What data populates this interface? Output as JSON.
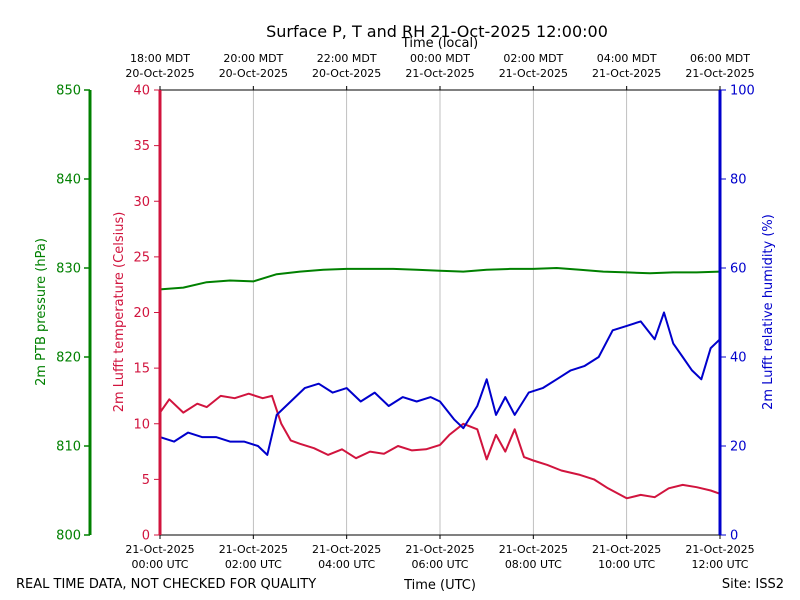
{
  "chart_data": {
    "type": "line",
    "title": "Surface P, T and RH 21-Oct-2025 12:00:00",
    "x_top_label": "Time (local)",
    "x_bottom_label": "Time (UTC)",
    "footer_left": "REAL TIME DATA, NOT CHECKED FOR QUALITY",
    "footer_right": "Site: ISS2",
    "x_range_utc": [
      "21-Oct-2025 00:00",
      "21-Oct-2025 12:00"
    ],
    "bottom_ticks": [
      {
        "hour": 0,
        "date": "21-Oct-2025",
        "time": "00:00 UTC"
      },
      {
        "hour": 2,
        "date": "21-Oct-2025",
        "time": "02:00 UTC"
      },
      {
        "hour": 4,
        "date": "21-Oct-2025",
        "time": "04:00 UTC"
      },
      {
        "hour": 6,
        "date": "21-Oct-2025",
        "time": "06:00 UTC"
      },
      {
        "hour": 8,
        "date": "21-Oct-2025",
        "time": "08:00 UTC"
      },
      {
        "hour": 10,
        "date": "21-Oct-2025",
        "time": "10:00 UTC"
      },
      {
        "hour": 12,
        "date": "21-Oct-2025",
        "time": "12:00 UTC"
      }
    ],
    "top_ticks": [
      {
        "hour": 0,
        "time": "18:00 MDT",
        "date": "20-Oct-2025"
      },
      {
        "hour": 2,
        "time": "20:00 MDT",
        "date": "20-Oct-2025"
      },
      {
        "hour": 4,
        "time": "22:00 MDT",
        "date": "20-Oct-2025"
      },
      {
        "hour": 6,
        "time": "00:00 MDT",
        "date": "21-Oct-2025"
      },
      {
        "hour": 8,
        "time": "02:00 MDT",
        "date": "21-Oct-2025"
      },
      {
        "hour": 10,
        "time": "04:00 MDT",
        "date": "21-Oct-2025"
      },
      {
        "hour": 12,
        "time": "06:00 MDT",
        "date": "21-Oct-2025"
      }
    ],
    "grid": "vertical",
    "axes": {
      "temperature": {
        "label": "2m Lufft temperature (Celsius)",
        "range": [
          0,
          40
        ],
        "ticks": [
          0,
          5,
          10,
          15,
          20,
          25,
          30,
          35,
          40
        ],
        "color": "#d1143e"
      },
      "pressure": {
        "label": "2m PTB pressure (hPa)",
        "range": [
          800,
          850
        ],
        "ticks": [
          800,
          810,
          820,
          830,
          840,
          850
        ],
        "color": "#008000"
      },
      "humidity": {
        "label": "2m Lufft relative humidity (%)",
        "range": [
          0,
          100
        ],
        "ticks": [
          0,
          20,
          40,
          60,
          80,
          100
        ],
        "color": "#0000cc"
      }
    },
    "series": [
      {
        "name": "2m PTB pressure (hPa)",
        "axis": "pressure",
        "color": "#008000",
        "x": [
          0,
          0.5,
          1,
          1.5,
          2,
          2.5,
          3,
          3.5,
          4,
          4.5,
          5,
          5.5,
          6,
          6.5,
          7,
          7.5,
          8,
          8.5,
          9,
          9.5,
          10,
          10.5,
          11,
          11.5,
          12
        ],
        "values": [
          827.6,
          827.8,
          828.4,
          828.6,
          828.5,
          829.3,
          829.6,
          829.8,
          829.9,
          829.9,
          829.9,
          829.8,
          829.7,
          829.6,
          829.8,
          829.9,
          829.9,
          830.0,
          829.8,
          829.6,
          829.5,
          829.4,
          829.5,
          829.5,
          829.6
        ]
      },
      {
        "name": "2m Lufft temperature (Celsius)",
        "axis": "temperature",
        "color": "#d1143e",
        "x": [
          0,
          0.2,
          0.5,
          0.8,
          1,
          1.3,
          1.6,
          1.9,
          2.2,
          2.4,
          2.6,
          2.8,
          3,
          3.3,
          3.6,
          3.9,
          4.2,
          4.5,
          4.8,
          5.1,
          5.4,
          5.7,
          6,
          6.2,
          6.5,
          6.8,
          7.0,
          7.2,
          7.4,
          7.6,
          7.8,
          8.0,
          8.3,
          8.6,
          9.0,
          9.3,
          9.6,
          10.0,
          10.3,
          10.6,
          10.9,
          11.2,
          11.5,
          11.8,
          12
        ],
        "values": [
          11.0,
          12.2,
          11.0,
          11.8,
          11.5,
          12.5,
          12.3,
          12.7,
          12.3,
          12.5,
          10.0,
          8.5,
          8.2,
          7.8,
          7.2,
          7.7,
          6.9,
          7.5,
          7.3,
          8.0,
          7.6,
          7.7,
          8.1,
          9.0,
          10.0,
          9.5,
          6.8,
          9.0,
          7.5,
          9.5,
          7.0,
          6.7,
          6.3,
          5.8,
          5.4,
          5.0,
          4.2,
          3.3,
          3.6,
          3.4,
          4.2,
          4.5,
          4.3,
          4.0,
          3.7
        ]
      },
      {
        "name": "2m Lufft relative humidity (%)",
        "axis": "humidity",
        "color": "#0000cc",
        "x": [
          0,
          0.3,
          0.6,
          0.9,
          1.2,
          1.5,
          1.8,
          2.1,
          2.3,
          2.5,
          2.8,
          3.1,
          3.4,
          3.7,
          4.0,
          4.3,
          4.6,
          4.9,
          5.2,
          5.5,
          5.8,
          6.0,
          6.3,
          6.5,
          6.8,
          7.0,
          7.2,
          7.4,
          7.6,
          7.9,
          8.2,
          8.5,
          8.8,
          9.1,
          9.4,
          9.7,
          10.0,
          10.3,
          10.6,
          10.8,
          11.0,
          11.2,
          11.4,
          11.6,
          11.8,
          12
        ],
        "values": [
          22,
          21,
          23,
          22,
          22,
          21,
          21,
          20,
          18,
          27,
          30,
          33,
          34,
          32,
          33,
          30,
          32,
          29,
          31,
          30,
          31,
          30,
          26,
          24,
          29,
          35,
          27,
          31,
          27,
          32,
          33,
          35,
          37,
          38,
          40,
          46,
          47,
          48,
          44,
          50,
          43,
          40,
          37,
          35,
          42,
          44
        ]
      }
    ]
  }
}
